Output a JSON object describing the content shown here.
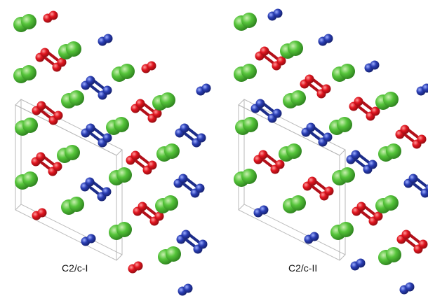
{
  "colors": {
    "green": "#55c43a",
    "red": "#e0151f",
    "blue": "#2a3eb4",
    "cell": "#b8b8b8",
    "background": "#ffffff"
  },
  "panels": [
    {
      "id": "left",
      "label": "C2/c-I"
    },
    {
      "id": "right",
      "label": "C2/c-II"
    }
  ]
}
